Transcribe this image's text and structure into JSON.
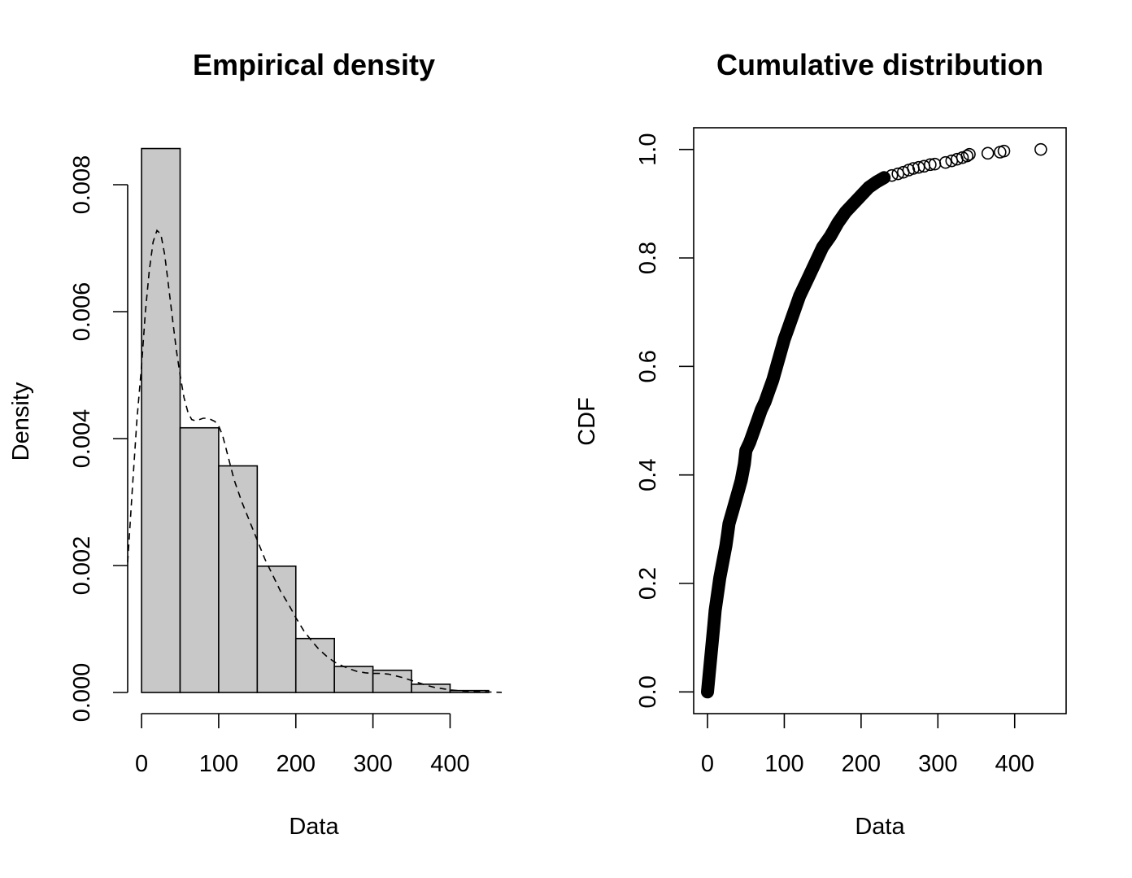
{
  "colors": {
    "bar_fill": "#c8c8c8",
    "stroke": "#000000",
    "background": "#ffffff"
  },
  "chart_data": [
    {
      "type": "bar",
      "title": "Empirical density",
      "xlabel": "Data",
      "ylabel": "Density",
      "xlim": [
        -18,
        467
      ],
      "ylim": [
        0,
        0.0087
      ],
      "x_ticks": [
        0,
        100,
        200,
        300,
        400
      ],
      "y_ticks": [
        0.0,
        0.002,
        0.004,
        0.006,
        0.008
      ],
      "x_tick_labels": [
        "0",
        "100",
        "200",
        "300",
        "400"
      ],
      "y_tick_labels": [
        "0.000",
        "0.002",
        "0.004",
        "0.006",
        "0.008"
      ],
      "bins": [
        {
          "from": 0,
          "to": 50,
          "density": 0.00857
        },
        {
          "from": 50,
          "to": 100,
          "density": 0.00417
        },
        {
          "from": 100,
          "to": 150,
          "density": 0.00357
        },
        {
          "from": 150,
          "to": 200,
          "density": 0.00199
        },
        {
          "from": 200,
          "to": 250,
          "density": 0.00085
        },
        {
          "from": 250,
          "to": 300,
          "density": 0.00041
        },
        {
          "from": 300,
          "to": 350,
          "density": 0.00035
        },
        {
          "from": 350,
          "to": 400,
          "density": 0.00013
        },
        {
          "from": 400,
          "to": 450,
          "density": 3e-05
        }
      ],
      "density_curve": {
        "line_style": "dashed",
        "x": [
          -18,
          -12,
          -6,
          0,
          5,
          10,
          15,
          20,
          25,
          30,
          35,
          40,
          45,
          50,
          55,
          60,
          65,
          70,
          75,
          80,
          85,
          90,
          95,
          100,
          105,
          110,
          120,
          130,
          140,
          150,
          160,
          170,
          180,
          190,
          200,
          210,
          220,
          230,
          240,
          250,
          260,
          270,
          280,
          290,
          300,
          310,
          320,
          330,
          340,
          350,
          360,
          370,
          380,
          390,
          400,
          420,
          440,
          467
        ],
        "y": [
          0.00205,
          0.0032,
          0.0043,
          0.00515,
          0.006,
          0.00665,
          0.0071,
          0.00728,
          0.00722,
          0.0069,
          0.0064,
          0.0059,
          0.0054,
          0.005,
          0.00465,
          0.00442,
          0.0043,
          0.00428,
          0.0043,
          0.00432,
          0.00432,
          0.0043,
          0.00427,
          0.0042,
          0.00405,
          0.00382,
          0.00335,
          0.003,
          0.0027,
          0.0024,
          0.0021,
          0.00185,
          0.0016,
          0.0014,
          0.00118,
          0.00098,
          0.00082,
          0.00068,
          0.00057,
          0.00048,
          0.00042,
          0.00037,
          0.00033,
          0.00031,
          0.0003,
          0.0003,
          0.00029,
          0.00026,
          0.00023,
          0.00019,
          0.00015,
          0.00011,
          8e-05,
          6e-05,
          4e-05,
          2e-05,
          1e-05,
          3e-06
        ]
      }
    },
    {
      "type": "scatter",
      "title": "Cumulative distribution",
      "xlabel": "Data",
      "ylabel": "CDF",
      "xlim": [
        -18,
        467
      ],
      "ylim": [
        -0.04,
        1.04
      ],
      "x_ticks": [
        0,
        100,
        200,
        300,
        400
      ],
      "y_ticks": [
        0.0,
        0.2,
        0.4,
        0.6,
        0.8,
        1.0
      ],
      "x_tick_labels": [
        "0",
        "100",
        "200",
        "300",
        "400"
      ],
      "y_tick_labels": [
        "0.0",
        "0.2",
        "0.4",
        "0.6",
        "0.8",
        "1.0"
      ],
      "marker": "open-circle",
      "dense_curve": {
        "x": [
          0,
          2,
          4,
          6,
          8,
          10,
          12,
          14,
          16,
          18,
          20,
          22,
          24,
          26,
          28,
          30,
          33,
          36,
          40,
          44,
          48,
          50,
          55,
          60,
          65,
          70,
          75,
          80,
          85,
          90,
          95,
          100,
          105,
          110,
          115,
          120,
          130,
          140,
          150,
          160,
          170,
          180,
          190,
          200,
          210,
          220,
          230
        ],
        "y": [
          0.0,
          0.03,
          0.06,
          0.09,
          0.12,
          0.15,
          0.17,
          0.19,
          0.21,
          0.225,
          0.24,
          0.255,
          0.27,
          0.29,
          0.31,
          0.32,
          0.335,
          0.35,
          0.37,
          0.39,
          0.42,
          0.445,
          0.46,
          0.48,
          0.5,
          0.52,
          0.535,
          0.555,
          0.575,
          0.6,
          0.625,
          0.65,
          0.67,
          0.69,
          0.71,
          0.73,
          0.76,
          0.79,
          0.82,
          0.84,
          0.865,
          0.885,
          0.9,
          0.915,
          0.93,
          0.94,
          0.948
        ]
      },
      "points": [
        [
          240,
          0.952
        ],
        [
          248,
          0.955
        ],
        [
          255,
          0.958
        ],
        [
          262,
          0.962
        ],
        [
          268,
          0.965
        ],
        [
          275,
          0.967
        ],
        [
          282,
          0.969
        ],
        [
          290,
          0.972
        ],
        [
          296,
          0.973
        ],
        [
          310,
          0.976
        ],
        [
          318,
          0.979
        ],
        [
          325,
          0.982
        ],
        [
          332,
          0.985
        ],
        [
          338,
          0.988
        ],
        [
          341,
          0.991
        ],
        [
          365,
          0.993
        ],
        [
          381,
          0.995
        ],
        [
          386,
          0.997
        ],
        [
          434,
          1.0
        ]
      ]
    }
  ]
}
